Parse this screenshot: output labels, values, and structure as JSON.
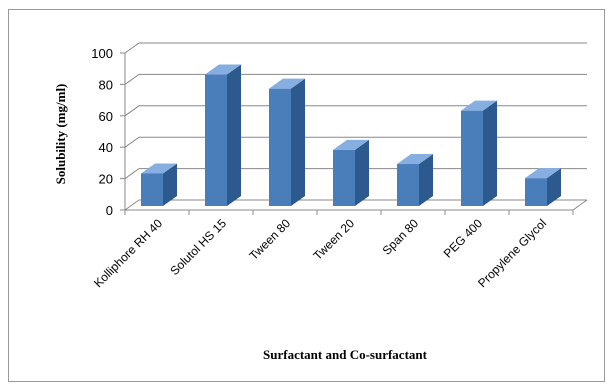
{
  "chart_data": {
    "type": "bar",
    "categories": [
      "Kolliphore RH 40",
      "Solutol HS 15",
      "Tween 80",
      "Tween 20",
      "Span 80",
      "PEG 400",
      "Propylene Glycol"
    ],
    "values": [
      22,
      85,
      76,
      37,
      28,
      62,
      19
    ],
    "xlabel": "Surfactant and Co-surfactant",
    "ylabel": "Solubility (mg/ml)",
    "ylim": [
      0,
      100
    ],
    "yticks": [
      0,
      20,
      40,
      60,
      80,
      100
    ],
    "grid": true,
    "style": "3d-column",
    "colors": {
      "front": "#4a7ebb",
      "side": "#2c5a8e",
      "top": "#86aee0",
      "grid": "#888888"
    }
  }
}
